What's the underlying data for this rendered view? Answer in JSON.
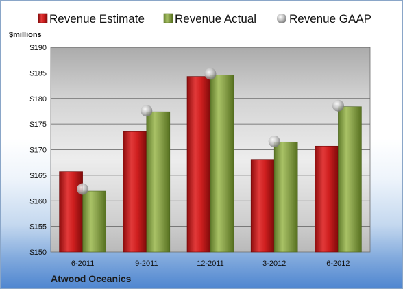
{
  "company": "Atwood Oceanics",
  "chart_data": {
    "type": "bar",
    "ylabel": "$millions",
    "categories": [
      "6-2011",
      "9-2011",
      "12-2011",
      "3-2012",
      "6-2012"
    ],
    "ylim": [
      150,
      190
    ],
    "yticks": [
      150,
      155,
      160,
      165,
      170,
      175,
      180,
      185,
      190
    ],
    "ytick_labels": [
      "$150",
      "$155",
      "$160",
      "$165",
      "$170",
      "$175",
      "$180",
      "$185",
      "$190"
    ],
    "grid": true,
    "legend_position": "top",
    "series": [
      {
        "name": "Revenue Estimate",
        "kind": "bar",
        "color": "#cc1f1f",
        "values": [
          165.7,
          173.5,
          184.3,
          168.1,
          170.7
        ]
      },
      {
        "name": "Revenue Actual",
        "kind": "bar",
        "color": "#8aa34a",
        "values": [
          161.9,
          177.4,
          184.6,
          171.5,
          178.4
        ]
      },
      {
        "name": "Revenue GAAP",
        "kind": "marker",
        "color": "#b8b8b8",
        "values": [
          162.3,
          177.6,
          184.8,
          171.6,
          178.6
        ]
      }
    ]
  }
}
